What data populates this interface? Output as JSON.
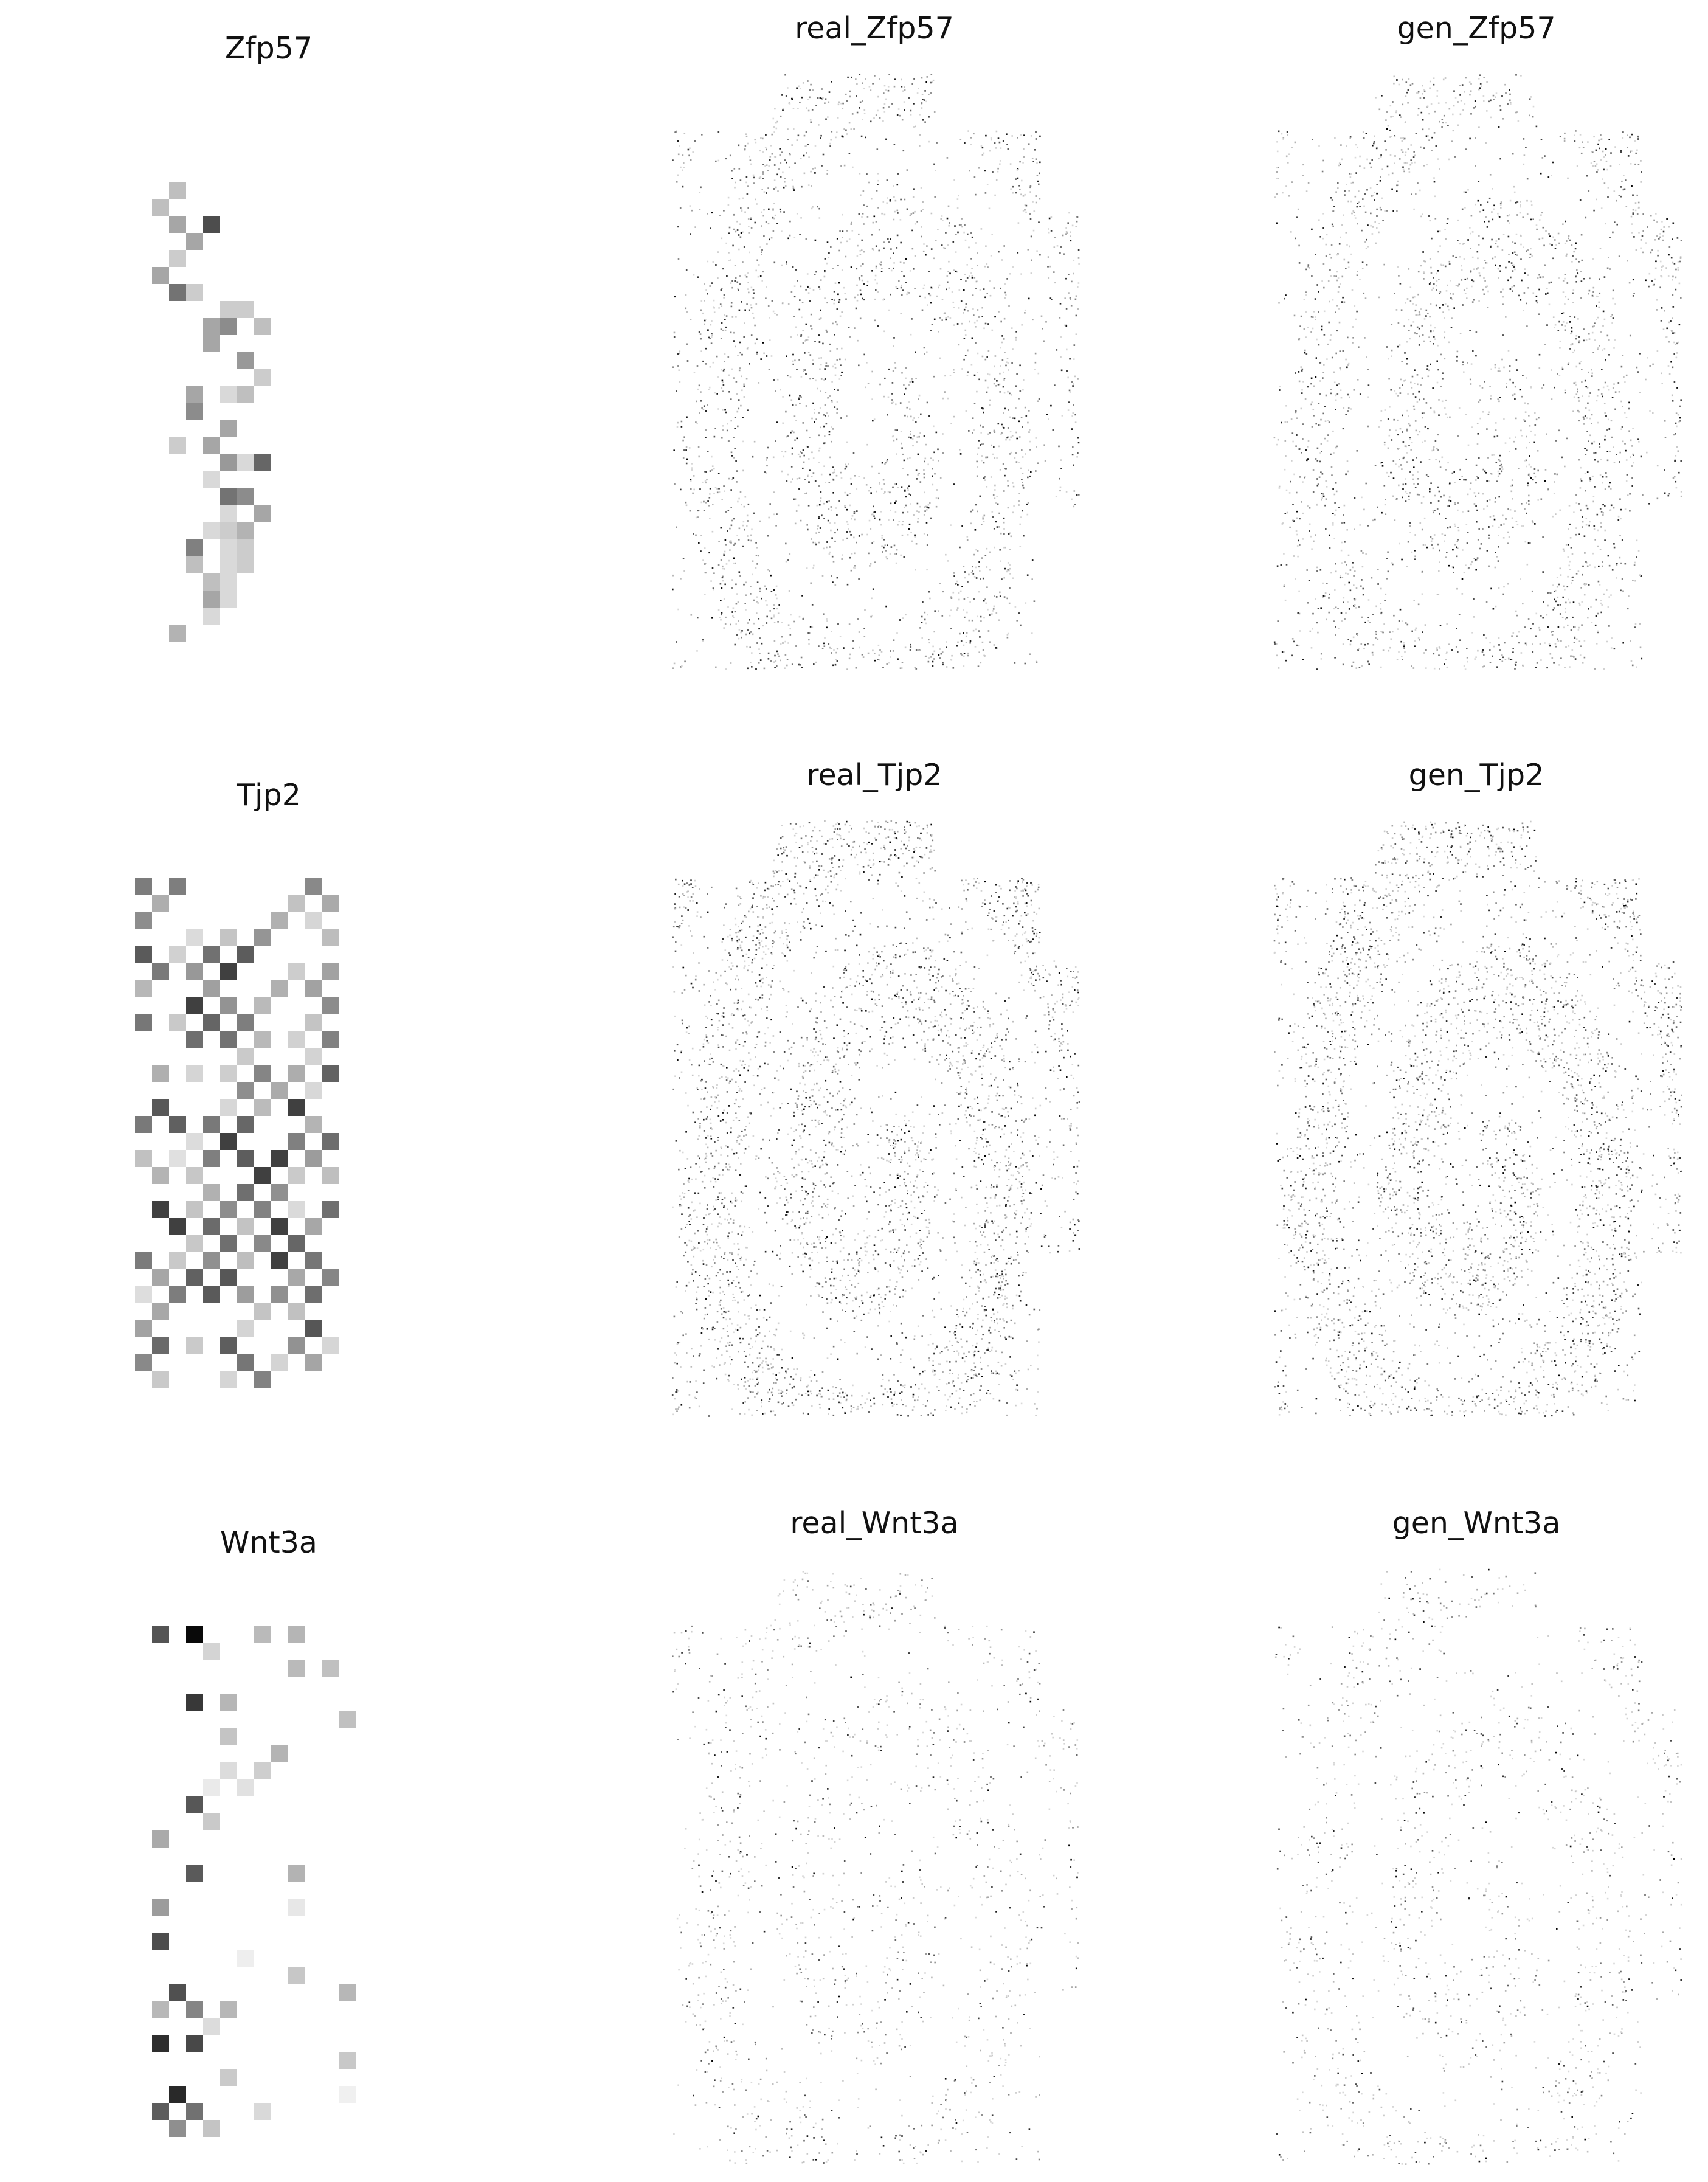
{
  "figure": {
    "panels": [
      {
        "id": "zfp57-grid",
        "title": "Zfp57"
      },
      {
        "id": "zfp57-real",
        "title": "real_Zfp57"
      },
      {
        "id": "zfp57-gen",
        "title": "gen_Zfp57"
      },
      {
        "id": "tjp2-grid",
        "title": "Tjp2"
      },
      {
        "id": "tjp2-real",
        "title": "real_Tjp2"
      },
      {
        "id": "tjp2-gen",
        "title": "gen_Tjp2"
      },
      {
        "id": "wnt3a-grid",
        "title": "Wnt3a"
      },
      {
        "id": "wnt3a-real",
        "title": "real_Wnt3a"
      },
      {
        "id": "wnt3a-gen",
        "title": "gen_Wnt3a"
      }
    ]
  },
  "chart_data": [
    {
      "type": "heatmap",
      "title": "Zfp57",
      "colormap": "greys",
      "axes": "off",
      "cells": [
        [
          1,
          3,
          0.25
        ],
        [
          0,
          4,
          0.25
        ],
        [
          1,
          5,
          0.35
        ],
        [
          3,
          5,
          0.7
        ],
        [
          2,
          6,
          0.35
        ],
        [
          1,
          7,
          0.2
        ],
        [
          0,
          8,
          0.35
        ],
        [
          1,
          9,
          0.55
        ],
        [
          2,
          9,
          0.2
        ],
        [
          4,
          10,
          0.2
        ],
        [
          5,
          10,
          0.2
        ],
        [
          3,
          11,
          0.35
        ],
        [
          4,
          11,
          0.45
        ],
        [
          6,
          11,
          0.25
        ],
        [
          3,
          12,
          0.35
        ],
        [
          5,
          13,
          0.4
        ],
        [
          6,
          14,
          0.2
        ],
        [
          2,
          15,
          0.35
        ],
        [
          4,
          15,
          0.15
        ],
        [
          5,
          15,
          0.25
        ],
        [
          2,
          16,
          0.45
        ],
        [
          4,
          17,
          0.35
        ],
        [
          1,
          18,
          0.2
        ],
        [
          3,
          18,
          0.35
        ],
        [
          4,
          19,
          0.4
        ],
        [
          5,
          19,
          0.15
        ],
        [
          6,
          19,
          0.6
        ],
        [
          3,
          20,
          0.15
        ],
        [
          4,
          21,
          0.55
        ],
        [
          5,
          21,
          0.45
        ],
        [
          4,
          22,
          0.15
        ],
        [
          6,
          22,
          0.35
        ],
        [
          3,
          23,
          0.15
        ],
        [
          4,
          23,
          0.2
        ],
        [
          5,
          23,
          0.3
        ],
        [
          2,
          24,
          0.5
        ],
        [
          4,
          24,
          0.15
        ],
        [
          5,
          24,
          0.2
        ],
        [
          2,
          25,
          0.25
        ],
        [
          4,
          25,
          0.15
        ],
        [
          5,
          25,
          0.2
        ],
        [
          3,
          26,
          0.25
        ],
        [
          4,
          26,
          0.15
        ],
        [
          3,
          27,
          0.35
        ],
        [
          4,
          27,
          0.15
        ],
        [
          3,
          28,
          0.15
        ],
        [
          1,
          29,
          0.3
        ]
      ]
    },
    {
      "type": "scatter",
      "title": "real_Zfp57",
      "colormap": "greys",
      "axes": "off",
      "density": "medium"
    },
    {
      "type": "scatter",
      "title": "gen_Zfp57",
      "colormap": "greys",
      "axes": "off",
      "density": "medium"
    },
    {
      "type": "heatmap",
      "title": "Tjp2",
      "colormap": "greys",
      "axes": "off",
      "density": "high"
    },
    {
      "type": "scatter",
      "title": "real_Tjp2",
      "colormap": "greys",
      "axes": "off",
      "density": "high"
    },
    {
      "type": "scatter",
      "title": "gen_Tjp2",
      "colormap": "greys",
      "axes": "off",
      "density": "high"
    },
    {
      "type": "heatmap",
      "title": "Wnt3a",
      "colormap": "greys",
      "axes": "off",
      "density": "low"
    },
    {
      "type": "scatter",
      "title": "real_Wnt3a",
      "colormap": "greys",
      "axes": "off",
      "density": "low"
    },
    {
      "type": "scatter",
      "title": "gen_Wnt3a",
      "colormap": "greys",
      "axes": "off",
      "density": "low"
    }
  ]
}
